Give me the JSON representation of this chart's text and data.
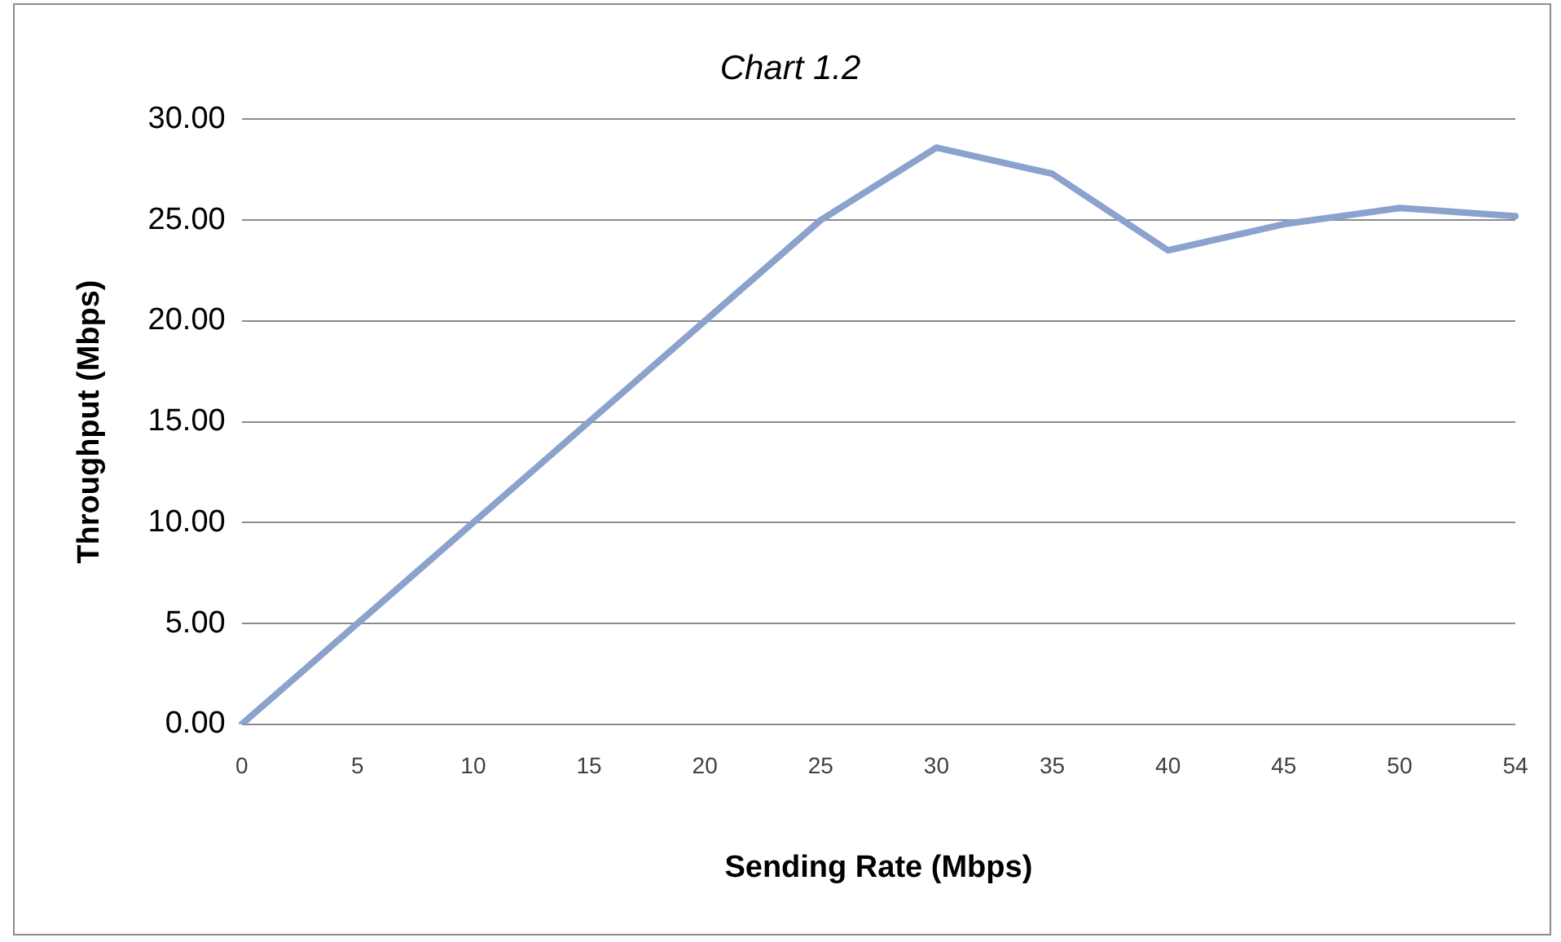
{
  "chart_data": {
    "type": "line",
    "title": "Chart 1.2",
    "xlabel": "Sending Rate (Mbps)",
    "ylabel": "Throughput (Mbps)",
    "categories": [
      "0",
      "5",
      "10",
      "15",
      "20",
      "25",
      "30",
      "35",
      "40",
      "45",
      "50",
      "54"
    ],
    "series": [
      {
        "color": "#8aa2cc",
        "values": [
          0,
          5,
          10,
          15,
          20,
          25,
          28.6,
          27.3,
          23.5,
          24.8,
          25.6,
          25.2
        ]
      }
    ],
    "ylim": [
      0,
      30
    ],
    "yticks": [
      {
        "value": 0,
        "label": "0.00"
      },
      {
        "value": 5,
        "label": "5.00"
      },
      {
        "value": 10,
        "label": "10.00"
      },
      {
        "value": 15,
        "label": "15.00"
      },
      {
        "value": 20,
        "label": "20.00"
      },
      {
        "value": 25,
        "label": "25.00"
      },
      {
        "value": 30,
        "label": "30.00"
      }
    ],
    "grid": "y",
    "legend": false,
    "marker": "none",
    "line_style": "solid"
  }
}
